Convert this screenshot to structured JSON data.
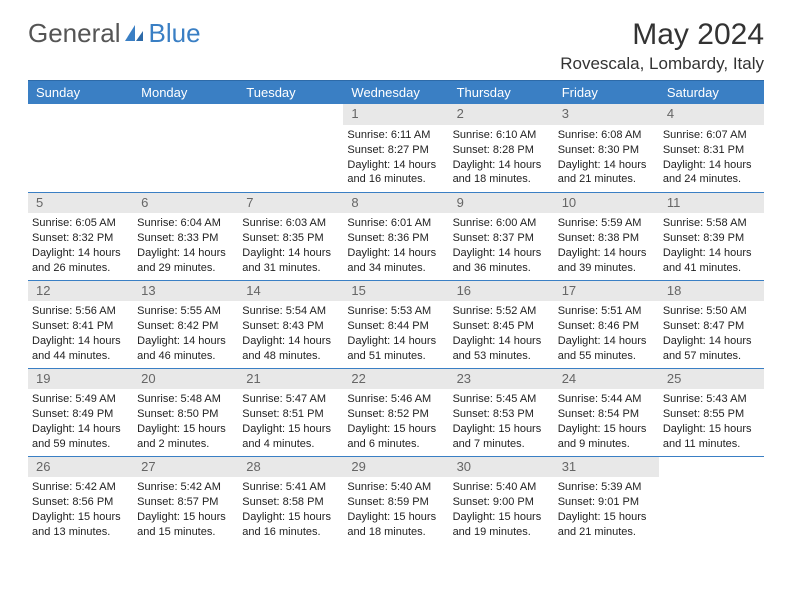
{
  "brand": {
    "part1": "General",
    "part2": "Blue"
  },
  "title": "May 2024",
  "location": "Rovescala, Lombardy, Italy",
  "colors": {
    "accent": "#3a7fc4",
    "header_text": "#ffffff",
    "daynum_bg": "#e8e8e8",
    "daynum_text": "#666666",
    "body_text": "#1a1a1a",
    "row_border": "#3a7fc4"
  },
  "weekdays": [
    "Sunday",
    "Monday",
    "Tuesday",
    "Wednesday",
    "Thursday",
    "Friday",
    "Saturday"
  ],
  "weeks": [
    [
      null,
      null,
      null,
      {
        "n": "1",
        "sr": "Sunrise: 6:11 AM",
        "ss": "Sunset: 8:27 PM",
        "dl1": "Daylight: 14 hours",
        "dl2": "and 16 minutes."
      },
      {
        "n": "2",
        "sr": "Sunrise: 6:10 AM",
        "ss": "Sunset: 8:28 PM",
        "dl1": "Daylight: 14 hours",
        "dl2": "and 18 minutes."
      },
      {
        "n": "3",
        "sr": "Sunrise: 6:08 AM",
        "ss": "Sunset: 8:30 PM",
        "dl1": "Daylight: 14 hours",
        "dl2": "and 21 minutes."
      },
      {
        "n": "4",
        "sr": "Sunrise: 6:07 AM",
        "ss": "Sunset: 8:31 PM",
        "dl1": "Daylight: 14 hours",
        "dl2": "and 24 minutes."
      }
    ],
    [
      {
        "n": "5",
        "sr": "Sunrise: 6:05 AM",
        "ss": "Sunset: 8:32 PM",
        "dl1": "Daylight: 14 hours",
        "dl2": "and 26 minutes."
      },
      {
        "n": "6",
        "sr": "Sunrise: 6:04 AM",
        "ss": "Sunset: 8:33 PM",
        "dl1": "Daylight: 14 hours",
        "dl2": "and 29 minutes."
      },
      {
        "n": "7",
        "sr": "Sunrise: 6:03 AM",
        "ss": "Sunset: 8:35 PM",
        "dl1": "Daylight: 14 hours",
        "dl2": "and 31 minutes."
      },
      {
        "n": "8",
        "sr": "Sunrise: 6:01 AM",
        "ss": "Sunset: 8:36 PM",
        "dl1": "Daylight: 14 hours",
        "dl2": "and 34 minutes."
      },
      {
        "n": "9",
        "sr": "Sunrise: 6:00 AM",
        "ss": "Sunset: 8:37 PM",
        "dl1": "Daylight: 14 hours",
        "dl2": "and 36 minutes."
      },
      {
        "n": "10",
        "sr": "Sunrise: 5:59 AM",
        "ss": "Sunset: 8:38 PM",
        "dl1": "Daylight: 14 hours",
        "dl2": "and 39 minutes."
      },
      {
        "n": "11",
        "sr": "Sunrise: 5:58 AM",
        "ss": "Sunset: 8:39 PM",
        "dl1": "Daylight: 14 hours",
        "dl2": "and 41 minutes."
      }
    ],
    [
      {
        "n": "12",
        "sr": "Sunrise: 5:56 AM",
        "ss": "Sunset: 8:41 PM",
        "dl1": "Daylight: 14 hours",
        "dl2": "and 44 minutes."
      },
      {
        "n": "13",
        "sr": "Sunrise: 5:55 AM",
        "ss": "Sunset: 8:42 PM",
        "dl1": "Daylight: 14 hours",
        "dl2": "and 46 minutes."
      },
      {
        "n": "14",
        "sr": "Sunrise: 5:54 AM",
        "ss": "Sunset: 8:43 PM",
        "dl1": "Daylight: 14 hours",
        "dl2": "and 48 minutes."
      },
      {
        "n": "15",
        "sr": "Sunrise: 5:53 AM",
        "ss": "Sunset: 8:44 PM",
        "dl1": "Daylight: 14 hours",
        "dl2": "and 51 minutes."
      },
      {
        "n": "16",
        "sr": "Sunrise: 5:52 AM",
        "ss": "Sunset: 8:45 PM",
        "dl1": "Daylight: 14 hours",
        "dl2": "and 53 minutes."
      },
      {
        "n": "17",
        "sr": "Sunrise: 5:51 AM",
        "ss": "Sunset: 8:46 PM",
        "dl1": "Daylight: 14 hours",
        "dl2": "and 55 minutes."
      },
      {
        "n": "18",
        "sr": "Sunrise: 5:50 AM",
        "ss": "Sunset: 8:47 PM",
        "dl1": "Daylight: 14 hours",
        "dl2": "and 57 minutes."
      }
    ],
    [
      {
        "n": "19",
        "sr": "Sunrise: 5:49 AM",
        "ss": "Sunset: 8:49 PM",
        "dl1": "Daylight: 14 hours",
        "dl2": "and 59 minutes."
      },
      {
        "n": "20",
        "sr": "Sunrise: 5:48 AM",
        "ss": "Sunset: 8:50 PM",
        "dl1": "Daylight: 15 hours",
        "dl2": "and 2 minutes."
      },
      {
        "n": "21",
        "sr": "Sunrise: 5:47 AM",
        "ss": "Sunset: 8:51 PM",
        "dl1": "Daylight: 15 hours",
        "dl2": "and 4 minutes."
      },
      {
        "n": "22",
        "sr": "Sunrise: 5:46 AM",
        "ss": "Sunset: 8:52 PM",
        "dl1": "Daylight: 15 hours",
        "dl2": "and 6 minutes."
      },
      {
        "n": "23",
        "sr": "Sunrise: 5:45 AM",
        "ss": "Sunset: 8:53 PM",
        "dl1": "Daylight: 15 hours",
        "dl2": "and 7 minutes."
      },
      {
        "n": "24",
        "sr": "Sunrise: 5:44 AM",
        "ss": "Sunset: 8:54 PM",
        "dl1": "Daylight: 15 hours",
        "dl2": "and 9 minutes."
      },
      {
        "n": "25",
        "sr": "Sunrise: 5:43 AM",
        "ss": "Sunset: 8:55 PM",
        "dl1": "Daylight: 15 hours",
        "dl2": "and 11 minutes."
      }
    ],
    [
      {
        "n": "26",
        "sr": "Sunrise: 5:42 AM",
        "ss": "Sunset: 8:56 PM",
        "dl1": "Daylight: 15 hours",
        "dl2": "and 13 minutes."
      },
      {
        "n": "27",
        "sr": "Sunrise: 5:42 AM",
        "ss": "Sunset: 8:57 PM",
        "dl1": "Daylight: 15 hours",
        "dl2": "and 15 minutes."
      },
      {
        "n": "28",
        "sr": "Sunrise: 5:41 AM",
        "ss": "Sunset: 8:58 PM",
        "dl1": "Daylight: 15 hours",
        "dl2": "and 16 minutes."
      },
      {
        "n": "29",
        "sr": "Sunrise: 5:40 AM",
        "ss": "Sunset: 8:59 PM",
        "dl1": "Daylight: 15 hours",
        "dl2": "and 18 minutes."
      },
      {
        "n": "30",
        "sr": "Sunrise: 5:40 AM",
        "ss": "Sunset: 9:00 PM",
        "dl1": "Daylight: 15 hours",
        "dl2": "and 19 minutes."
      },
      {
        "n": "31",
        "sr": "Sunrise: 5:39 AM",
        "ss": "Sunset: 9:01 PM",
        "dl1": "Daylight: 15 hours",
        "dl2": "and 21 minutes."
      },
      null
    ]
  ]
}
